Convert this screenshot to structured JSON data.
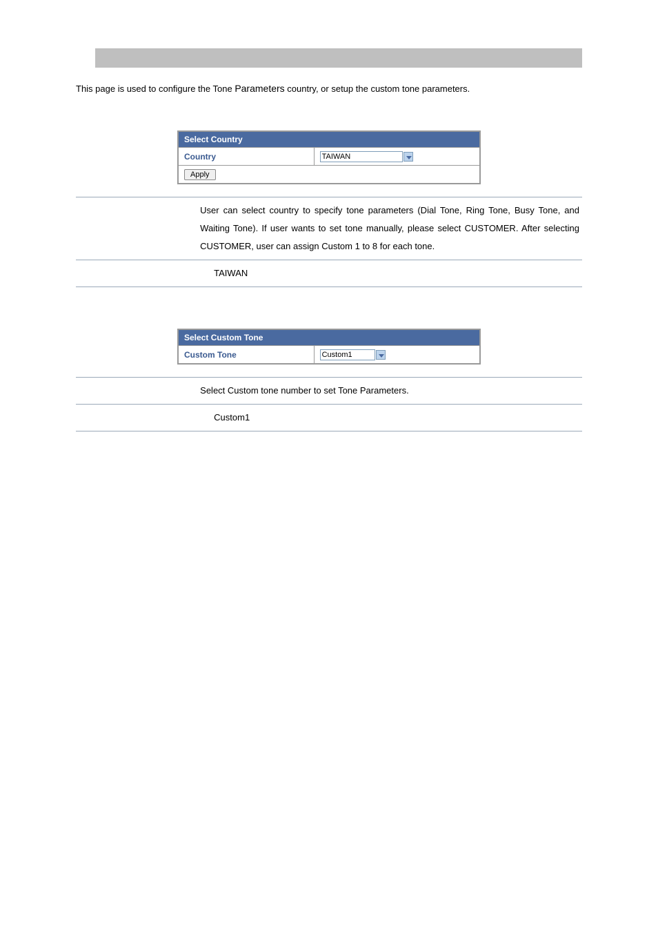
{
  "page": {
    "intro_prefix": "This page is used to configure the Tone ",
    "intro_bold": "Parameters",
    "intro_suffix": " country, or setup the custom tone parameters."
  },
  "select_country": {
    "header": "Select Country",
    "label": "Country",
    "value": "TAIWAN",
    "apply_label": "Apply"
  },
  "country_desc": {
    "text": "User can select country to specify tone parameters (Dial Tone, Ring Tone, Busy Tone, and Waiting Tone). If user wants to set tone manually, please select CUSTOMER. After selecting CUSTOMER, user can assign Custom 1 to 8 for each tone.",
    "default_value": "TAIWAN"
  },
  "select_custom": {
    "header": "Select Custom Tone",
    "label": "Custom Tone",
    "value": "Custom1"
  },
  "custom_desc": {
    "text": "Select Custom tone number to set Tone Parameters.",
    "default_value": "Custom1"
  },
  "colors": {
    "gray_bar": "#bfbfbf",
    "table_header_bg": "#4a6aa0",
    "table_header_fg": "#ffffff",
    "label_fg": "#3a5a90",
    "border": "#999999",
    "desc_border": "#9aa8b8"
  }
}
